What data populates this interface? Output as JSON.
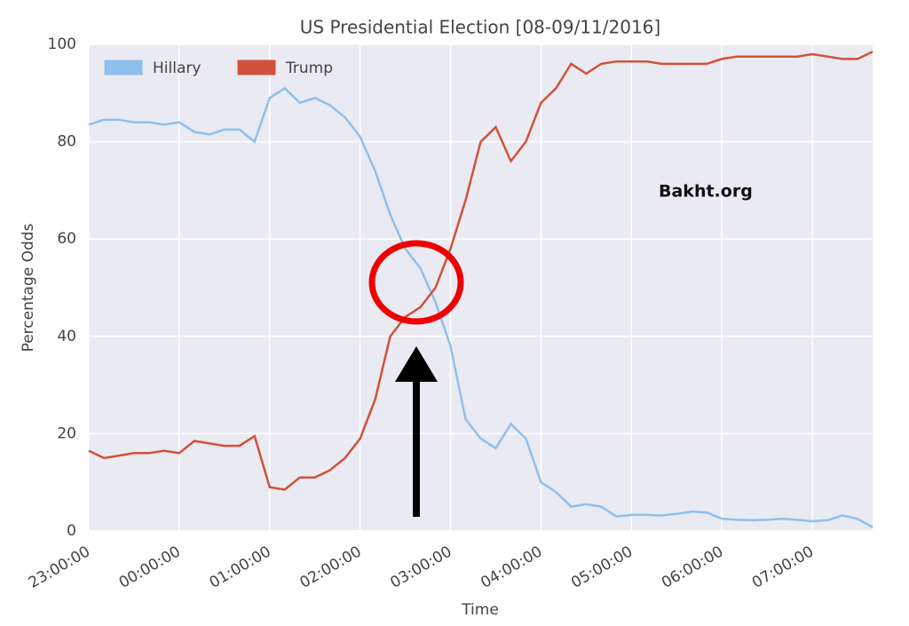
{
  "chart_data": {
    "type": "line",
    "title": "US Presidential Election [08-09/11/2016]",
    "x_label": "Time",
    "y_label": "Percentage Odds",
    "annotation": "Bakht.org",
    "x": [
      "23:00:00",
      "23:10:00",
      "23:20:00",
      "23:30:00",
      "23:40:00",
      "23:50:00",
      "00:00:00",
      "00:10:00",
      "00:20:00",
      "00:30:00",
      "00:40:00",
      "00:50:00",
      "01:00:00",
      "01:10:00",
      "01:20:00",
      "01:30:00",
      "01:40:00",
      "01:50:00",
      "02:00:00",
      "02:10:00",
      "02:20:00",
      "02:30:00",
      "02:40:00",
      "02:50:00",
      "03:00:00",
      "03:10:00",
      "03:20:00",
      "03:30:00",
      "03:40:00",
      "03:50:00",
      "04:00:00",
      "04:10:00",
      "04:20:00",
      "04:30:00",
      "04:40:00",
      "04:50:00",
      "05:00:00",
      "05:10:00",
      "05:20:00",
      "05:30:00",
      "05:40:00",
      "05:50:00",
      "06:00:00",
      "06:10:00",
      "06:20:00",
      "06:30:00",
      "06:40:00",
      "06:50:00",
      "07:00:00",
      "07:10:00",
      "07:20:00",
      "07:30:00",
      "07:40:00"
    ],
    "series": [
      {
        "name": "Hillary",
        "color": "#8ec0ee",
        "values": [
          83.5,
          84.5,
          84.5,
          84,
          84,
          83.5,
          84,
          82,
          81.5,
          82.5,
          82.5,
          80,
          89,
          91,
          88,
          89,
          87.5,
          85,
          81,
          74,
          65,
          58,
          54,
          47,
          38,
          23,
          19,
          17,
          22,
          19,
          10,
          8,
          5,
          5.5,
          5,
          3,
          3.3,
          3.3,
          3.2,
          3.5,
          4,
          3.8,
          2.5,
          2.3,
          2.2,
          2.3,
          2.5,
          2.3,
          2,
          2.2,
          3.2,
          2.5,
          0.8
        ]
      },
      {
        "name": "Trump",
        "color": "#d2513c",
        "values": [
          16.5,
          15,
          15.5,
          16,
          16,
          16.5,
          16,
          18.5,
          18,
          17.5,
          17.5,
          19.5,
          9,
          8.5,
          11,
          11,
          12.5,
          15,
          19,
          27,
          40,
          44,
          46,
          50,
          58,
          68,
          80,
          83,
          76,
          80,
          88,
          91,
          96,
          94,
          96,
          96.5,
          96.5,
          96.5,
          96,
          96,
          96,
          96,
          97,
          97.5,
          97.5,
          97.5,
          97.5,
          97.5,
          98,
          97.5,
          97,
          97,
          98.5
        ]
      }
    ],
    "xlim": [
      "23:00:00",
      "07:40:00"
    ],
    "xticks": [
      "23:00:00",
      "00:00:00",
      "01:00:00",
      "02:00:00",
      "03:00:00",
      "04:00:00",
      "05:00:00",
      "06:00:00",
      "07:00:00"
    ],
    "ylim": [
      0,
      100
    ],
    "yticks": [
      0,
      20,
      40,
      60,
      80,
      100
    ],
    "grid": true,
    "legend": "upper left"
  }
}
